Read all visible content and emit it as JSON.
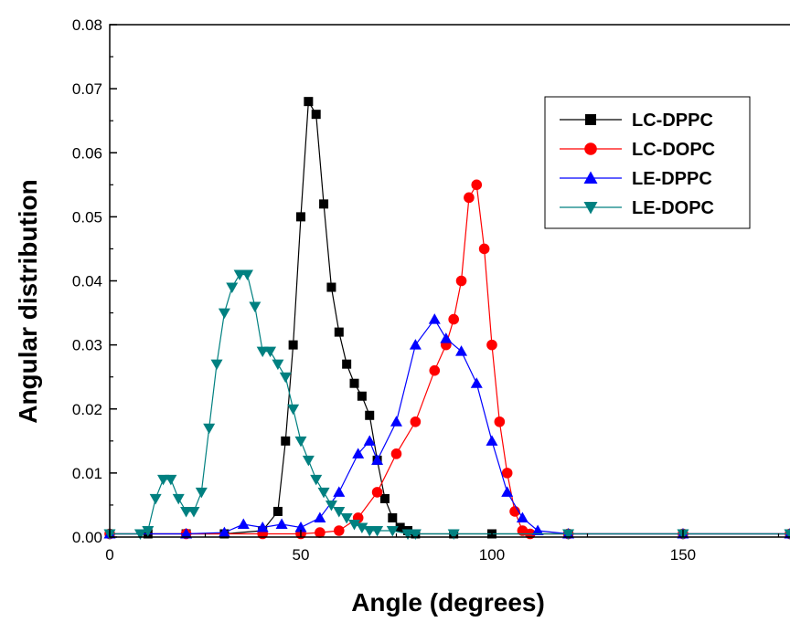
{
  "chart_data": {
    "type": "line",
    "title": "",
    "xlabel": "Angle (degrees)",
    "ylabel": "Angular distribution",
    "xlim": [
      0,
      178
    ],
    "ylim": [
      0,
      0.08
    ],
    "xticks": [
      0,
      50,
      100,
      150
    ],
    "xtick_labels": [
      "0",
      "50",
      "100",
      "150"
    ],
    "yticks": [
      0.0,
      0.01,
      0.02,
      0.03,
      0.04,
      0.05,
      0.06,
      0.07,
      0.08
    ],
    "ytick_labels": [
      "0.00",
      "0.01",
      "0.02",
      "0.03",
      "0.04",
      "0.05",
      "0.06",
      "0.07",
      "0.08"
    ],
    "grid": false,
    "legend_position": "top-right",
    "series": [
      {
        "name": "LC-DPPC",
        "color": "#000000",
        "marker": "square",
        "x": [
          0,
          10,
          20,
          30,
          40,
          44,
          46,
          48,
          50,
          52,
          54,
          56,
          58,
          60,
          62,
          64,
          66,
          68,
          70,
          72,
          74,
          76,
          78,
          80,
          90,
          100,
          120,
          150,
          178
        ],
        "y": [
          0.0005,
          0.0005,
          0.0005,
          0.0005,
          0.001,
          0.004,
          0.015,
          0.03,
          0.05,
          0.068,
          0.066,
          0.052,
          0.039,
          0.032,
          0.027,
          0.024,
          0.022,
          0.019,
          0.012,
          0.006,
          0.003,
          0.0015,
          0.001,
          0.0005,
          0.0005,
          0.0005,
          0.0005,
          0.0005,
          0.0005
        ]
      },
      {
        "name": "LC-DOPC",
        "color": "#ff0000",
        "marker": "circle",
        "x": [
          0,
          20,
          40,
          50,
          55,
          60,
          65,
          70,
          75,
          80,
          85,
          88,
          90,
          92,
          94,
          96,
          98,
          100,
          102,
          104,
          106,
          108,
          110,
          120,
          150,
          178
        ],
        "y": [
          0.0005,
          0.0005,
          0.0005,
          0.0005,
          0.0007,
          0.001,
          0.003,
          0.007,
          0.013,
          0.018,
          0.026,
          0.03,
          0.034,
          0.04,
          0.053,
          0.055,
          0.045,
          0.03,
          0.018,
          0.01,
          0.004,
          0.001,
          0.0005,
          0.0005,
          0.0005,
          0.0005
        ]
      },
      {
        "name": "LE-DPPC",
        "color": "#0000ff",
        "marker": "triangle-up",
        "x": [
          0,
          20,
          30,
          35,
          40,
          45,
          50,
          55,
          60,
          65,
          68,
          70,
          75,
          80,
          85,
          88,
          92,
          96,
          100,
          104,
          108,
          112,
          120,
          150,
          178
        ],
        "y": [
          0.0005,
          0.0005,
          0.0007,
          0.002,
          0.0015,
          0.002,
          0.0015,
          0.003,
          0.007,
          0.013,
          0.015,
          0.012,
          0.018,
          0.03,
          0.034,
          0.031,
          0.029,
          0.024,
          0.015,
          0.007,
          0.003,
          0.001,
          0.0005,
          0.0005,
          0.0005
        ]
      },
      {
        "name": "LE-DOPC",
        "color": "#008080",
        "marker": "triangle-down",
        "x": [
          0,
          8,
          10,
          12,
          14,
          16,
          18,
          20,
          22,
          24,
          26,
          28,
          30,
          32,
          34,
          36,
          38,
          40,
          42,
          44,
          46,
          48,
          50,
          52,
          54,
          56,
          58,
          60,
          62,
          64,
          66,
          68,
          70,
          74,
          78,
          80,
          90,
          120,
          150,
          178
        ],
        "y": [
          0.0005,
          0.0005,
          0.001,
          0.006,
          0.009,
          0.009,
          0.006,
          0.004,
          0.004,
          0.007,
          0.017,
          0.027,
          0.035,
          0.039,
          0.041,
          0.041,
          0.036,
          0.029,
          0.029,
          0.027,
          0.025,
          0.02,
          0.015,
          0.012,
          0.009,
          0.007,
          0.005,
          0.004,
          0.003,
          0.002,
          0.0015,
          0.001,
          0.001,
          0.001,
          0.0005,
          0.0005,
          0.0005,
          0.0005,
          0.0005,
          0.0005
        ]
      }
    ]
  }
}
